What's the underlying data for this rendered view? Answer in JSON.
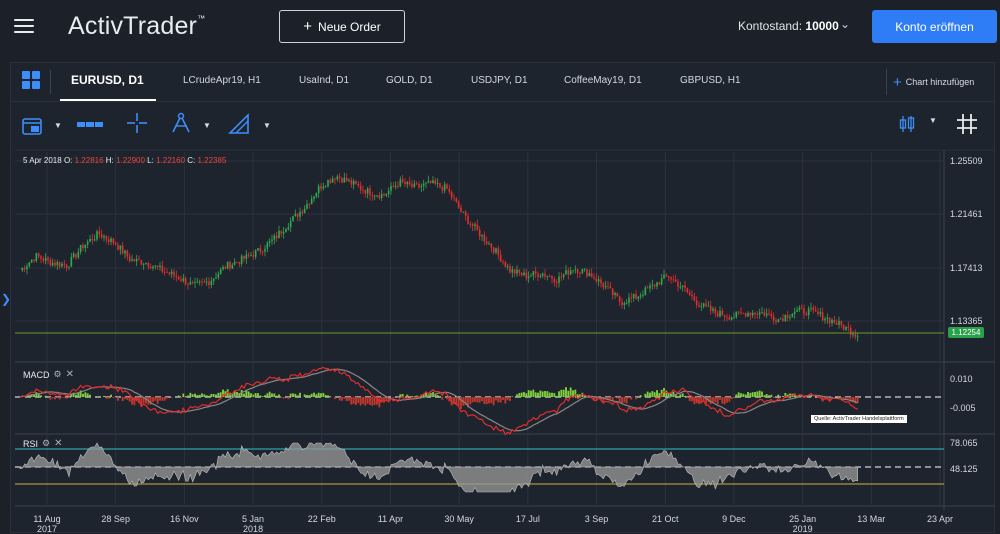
{
  "header": {
    "logo": "ActivTrader",
    "logo_tm": "™",
    "new_order_label": "Neue Order",
    "account_label": "Kontostand:",
    "account_value": "10000",
    "open_account_label": "Konto eröffnen"
  },
  "tabs": [
    {
      "label": "EURUSD, D1",
      "active": true
    },
    {
      "label": "LCrudeApr19, H1"
    },
    {
      "label": "UsaInd, D1"
    },
    {
      "label": "GOLD, D1"
    },
    {
      "label": "USDJPY, D1"
    },
    {
      "label": "CoffeeMay19, D1"
    },
    {
      "label": "GBPUSD, H1"
    }
  ],
  "add_chart_label": "Chart hinzufügen",
  "toolbar": {
    "icons": [
      "calendar-icon",
      "chart-type-icon",
      "crosshair-icon",
      "drawing-tool-icon",
      "line-tool-icon",
      "candles-icon",
      "grid-icon"
    ]
  },
  "ohlc": {
    "date": "5 Apr 2018",
    "o_label": "O:",
    "o": "1.22816",
    "h_label": "H:",
    "h": "1.22900",
    "l_label": "L:",
    "l": "1.22160",
    "c_label": "C:",
    "c": "1.22385"
  },
  "price_axis": [
    "1.25509",
    "1.21461",
    "1.17413",
    "1.13365"
  ],
  "current_price": "1.12254",
  "macd": {
    "label": "MACD",
    "axis": [
      "0.010",
      "-0.005"
    ]
  },
  "rsi": {
    "label": "RSI",
    "axis": [
      "78.065",
      "48.125"
    ]
  },
  "source_label": "Quelle: ActivTrader Handelsplattform",
  "x_axis": [
    "11 Aug 2017",
    "28 Sep",
    "16 Nov",
    "5 Jan 2018",
    "22 Feb",
    "11 Apr",
    "30 May",
    "17 Jul",
    "3 Sep",
    "21 Oct",
    "9 Dec",
    "25 Jan 2019",
    "13 Mar",
    "23 Apr"
  ],
  "colors": {
    "background": "#1b2029",
    "panel": "#1e242e",
    "accent": "#2e7cf6",
    "up": "#2fa84f",
    "down": "#e02d2d",
    "macd_signal": "#888888",
    "rsi_fill": "#9a9a9a",
    "rsi_upper": "#2ec4c4",
    "rsi_lower": "#c9b43a"
  },
  "chart_data": {
    "type": "candlestick",
    "series": [
      {
        "name": "EURUSD, D1",
        "type": "candlestick",
        "close": [
          1.172,
          1.183,
          1.178,
          1.176,
          1.191,
          1.2,
          1.193,
          1.18,
          1.178,
          1.172,
          1.167,
          1.16,
          1.164,
          1.175,
          1.18,
          1.186,
          1.195,
          1.208,
          1.22,
          1.236,
          1.244,
          1.238,
          1.232,
          1.229,
          1.239,
          1.235,
          1.238,
          1.234,
          1.215,
          1.201,
          1.188,
          1.172,
          1.168,
          1.17,
          1.165,
          1.174,
          1.17,
          1.16,
          1.148,
          1.152,
          1.16,
          1.168,
          1.158,
          1.146,
          1.14,
          1.137,
          1.14,
          1.14,
          1.135,
          1.141,
          1.141,
          1.136,
          1.13,
          1.123
        ],
        "ylim": [
          1.1,
          1.26
        ]
      },
      {
        "name": "MACD",
        "ylim": [
          -0.012,
          0.012
        ]
      },
      {
        "name": "RSI",
        "levels": [
          70,
          30
        ],
        "ylim": [
          10,
          90
        ]
      }
    ]
  }
}
